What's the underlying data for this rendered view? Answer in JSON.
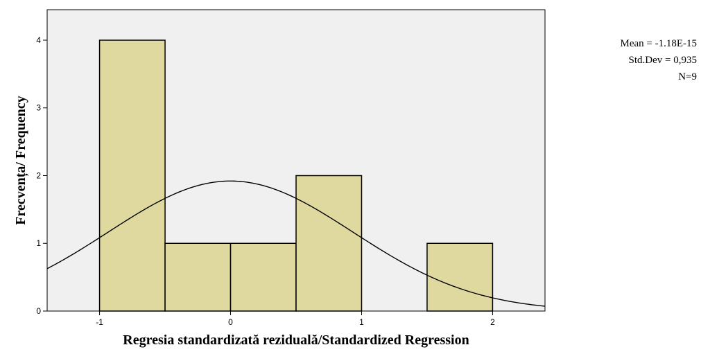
{
  "chart_data": {
    "type": "bar",
    "subtype": "histogram",
    "title": "",
    "xlabel": "Regresia standardizată reziduală/Standardized Regression",
    "ylabel": "Frecvența/ Frequency",
    "bins": [
      {
        "from": -1.0,
        "to": -0.5,
        "count": 4
      },
      {
        "from": -0.5,
        "to": 0.0,
        "count": 1
      },
      {
        "from": 0.0,
        "to": 0.5,
        "count": 1
      },
      {
        "from": 0.5,
        "to": 1.0,
        "count": 2
      },
      {
        "from": 1.0,
        "to": 1.5,
        "count": 0
      },
      {
        "from": 1.5,
        "to": 2.0,
        "count": 1
      }
    ],
    "xlim": [
      -1.4,
      2.4
    ],
    "ylim": [
      0,
      4.45
    ],
    "xticks": [
      -1,
      0,
      1,
      2
    ],
    "yticks": [
      0,
      1,
      2,
      3,
      4
    ],
    "xtick_labels": [
      "-1",
      "0",
      "1",
      "2"
    ],
    "ytick_labels": [
      "0",
      "1",
      "2",
      "3",
      "4"
    ],
    "normal_curve": {
      "mean": -1.18e-15,
      "std": 0.935,
      "n": 9,
      "bin_width": 0.5
    },
    "stats": {
      "mean_label": "Mean = -1.18E-15",
      "std_label": "Std.Dev = 0,935",
      "n_label": "N=9"
    },
    "grid": false,
    "colors": {
      "bar_fill": "#dfd9a0",
      "bar_stroke": "#000000",
      "plot_background": "#f0f0f0",
      "curve": "#000000"
    }
  }
}
